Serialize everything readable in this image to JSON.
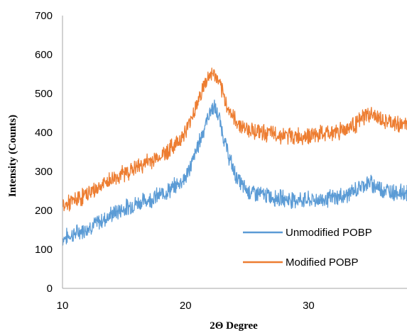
{
  "chart_data": {
    "type": "line",
    "title": "",
    "xlabel": "2Θ Degree",
    "ylabel": "Intensity (Counts)",
    "xlim": [
      10,
      38
    ],
    "ylim": [
      0,
      700
    ],
    "x_ticks": [
      10,
      20,
      30
    ],
    "y_ticks": [
      0,
      100,
      200,
      300,
      400,
      500,
      600,
      700
    ],
    "x_tick_labels": [
      "10",
      "20",
      "30"
    ],
    "y_tick_labels": [
      "0",
      "100",
      "200",
      "300",
      "400",
      "500",
      "600",
      "700"
    ],
    "grid": false,
    "legend_position": "bottom-right",
    "series": [
      {
        "name": "Unmodified POBP",
        "color": "#5b9bd5",
        "x": [
          10,
          11,
          12,
          13,
          14,
          15,
          16,
          17,
          18,
          19,
          20,
          20.5,
          21,
          21.5,
          22,
          22.3,
          22.7,
          23,
          23.5,
          24,
          24.5,
          25,
          26,
          27,
          28,
          29,
          30,
          31,
          32,
          33,
          34,
          34.5,
          35,
          35.5,
          36,
          36.5,
          37,
          38
        ],
        "values": [
          128,
          140,
          155,
          170,
          190,
          205,
          218,
          228,
          240,
          258,
          285,
          320,
          365,
          410,
          455,
          465,
          440,
          400,
          340,
          295,
          268,
          250,
          242,
          235,
          230,
          228,
          226,
          228,
          232,
          238,
          255,
          268,
          270,
          262,
          255,
          250,
          248,
          245
        ]
      },
      {
        "name": "Modified POBP",
        "color": "#ed7d31",
        "x": [
          10,
          11,
          12,
          13,
          14,
          15,
          16,
          17,
          18,
          19,
          20,
          20.5,
          21,
          21.5,
          22,
          22.3,
          22.7,
          23,
          23.5,
          24,
          24.5,
          25,
          26,
          27,
          28,
          29,
          30,
          31,
          32,
          33,
          34,
          34.5,
          35,
          35.5,
          36,
          36.5,
          37,
          38
        ],
        "values": [
          210,
          225,
          242,
          260,
          280,
          295,
          310,
          325,
          340,
          365,
          400,
          440,
          480,
          520,
          548,
          552,
          528,
          500,
          460,
          432,
          418,
          410,
          402,
          396,
          392,
          390,
          392,
          395,
          400,
          410,
          425,
          440,
          448,
          440,
          430,
          425,
          422,
          420
        ]
      }
    ]
  }
}
